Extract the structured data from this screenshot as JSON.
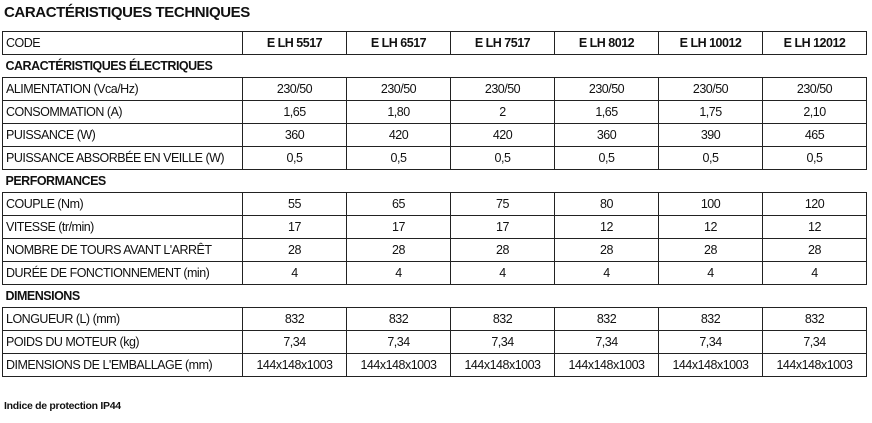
{
  "title": "CARACTÉRISTIQUES TECHNIQUES",
  "table": {
    "header": {
      "label": "CODE",
      "models": [
        "E LH 5517",
        "E LH 6517",
        "E LH 7517",
        "E LH 8012",
        "E LH 10012",
        "E LH 12012"
      ]
    },
    "sections": [
      {
        "title": "CARACTÉRISTIQUES ÉLECTRIQUES",
        "rows": [
          {
            "label": "ALIMENTATION (Vca/Hz)",
            "values": [
              "230/50",
              "230/50",
              "230/50",
              "230/50",
              "230/50",
              "230/50"
            ]
          },
          {
            "label": "CONSOMMATION (A)",
            "values": [
              "1,65",
              "1,80",
              "2",
              "1,65",
              "1,75",
              "2,10"
            ]
          },
          {
            "label": "PUISSANCE (W)",
            "values": [
              "360",
              "420",
              "420",
              "360",
              "390",
              "465"
            ]
          },
          {
            "label": "PUISSANCE ABSORBÉE EN VEILLE (W)",
            "values": [
              "0,5",
              "0,5",
              "0,5",
              "0,5",
              "0,5",
              "0,5"
            ]
          }
        ]
      },
      {
        "title": "PERFORMANCES",
        "rows": [
          {
            "label": "COUPLE (Nm)",
            "values": [
              "55",
              "65",
              "75",
              "80",
              "100",
              "120"
            ]
          },
          {
            "label": "VITESSE (tr/min)",
            "values": [
              "17",
              "17",
              "17",
              "12",
              "12",
              "12"
            ]
          },
          {
            "label": "NOMBRE DE TOURS AVANT L'ARRÊT",
            "values": [
              "28",
              "28",
              "28",
              "28",
              "28",
              "28"
            ]
          },
          {
            "label": "DURÉE DE FONCTIONNEMENT (min)",
            "values": [
              "4",
              "4",
              "4",
              "4",
              "4",
              "4"
            ]
          }
        ]
      },
      {
        "title": "DIMENSIONS",
        "rows": [
          {
            "label": "LONGUEUR (L) (mm)",
            "values": [
              "832",
              "832",
              "832",
              "832",
              "832",
              "832"
            ]
          },
          {
            "label": "POIDS DU MOTEUR (kg)",
            "values": [
              "7,34",
              "7,34",
              "7,34",
              "7,34",
              "7,34",
              "7,34"
            ]
          },
          {
            "label": "DIMENSIONS DE L'EMBALLAGE (mm)",
            "values": [
              "144x148x1003",
              "144x148x1003",
              "144x148x1003",
              "144x148x1003",
              "144x148x1003",
              "144x148x1003"
            ]
          }
        ]
      }
    ]
  },
  "footer": "Indice de protection IP44"
}
